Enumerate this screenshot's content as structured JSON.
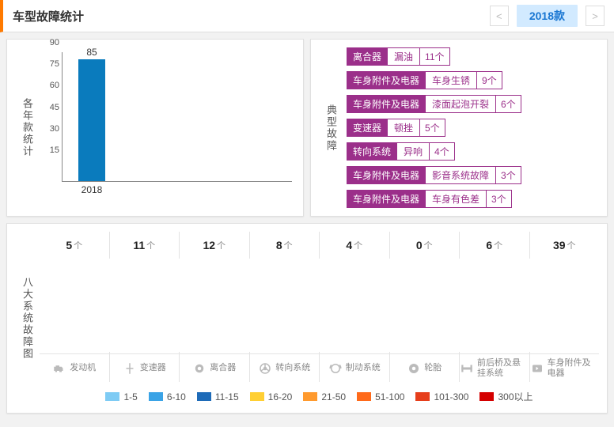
{
  "header": {
    "title": "车型故障统计",
    "prev": "<",
    "next": ">",
    "year_pill": "2018款"
  },
  "yearly": {
    "section_label": "各年款统计",
    "ylim": [
      0,
      90
    ],
    "ytick_step": 15,
    "bar_color": "#0a7bbd",
    "bars": [
      {
        "label": "2018",
        "value": 85
      }
    ]
  },
  "faults": {
    "section_label": "典型故障",
    "unit": "个",
    "cat_bg": "#9b2f8a",
    "items": [
      {
        "category": "离合器",
        "name": "漏油",
        "count": 11
      },
      {
        "category": "车身附件及电器",
        "name": "车身生锈",
        "count": 9
      },
      {
        "category": "车身附件及电器",
        "name": "漆面起泡开裂",
        "count": 6
      },
      {
        "category": "变速器",
        "name": "顿挫",
        "count": 5
      },
      {
        "category": "转向系统",
        "name": "异响",
        "count": 4
      },
      {
        "category": "车身附件及电器",
        "name": "影音系统故障",
        "count": 3
      },
      {
        "category": "车身附件及电器",
        "name": "车身有色差",
        "count": 3
      }
    ]
  },
  "systems": {
    "section_label": "八大系统故障图",
    "unit": "个",
    "bar_area_max": 40,
    "items": [
      {
        "name": "发动机",
        "count": 5,
        "icon": "engine"
      },
      {
        "name": "变速器",
        "count": 11,
        "icon": "gearbox"
      },
      {
        "name": "离合器",
        "count": 12,
        "icon": "clutch"
      },
      {
        "name": "转向系统",
        "count": 8,
        "icon": "steering"
      },
      {
        "name": "制动系统",
        "count": 4,
        "icon": "brake"
      },
      {
        "name": "轮胎",
        "count": 0,
        "icon": "tire"
      },
      {
        "name": "前后桥及悬挂系统",
        "count": 6,
        "icon": "axle"
      },
      {
        "name": "车身附件及电器",
        "count": 39,
        "icon": "body"
      }
    ]
  },
  "legend": {
    "buckets": [
      {
        "label": "1-5",
        "min": 1,
        "max": 5,
        "color": "#7ecbf4"
      },
      {
        "label": "6-10",
        "min": 6,
        "max": 10,
        "color": "#3aa3e6"
      },
      {
        "label": "11-15",
        "min": 11,
        "max": 15,
        "color": "#1e6bb8"
      },
      {
        "label": "16-20",
        "min": 16,
        "max": 20,
        "color": "#ffcf33"
      },
      {
        "label": "21-50",
        "min": 21,
        "max": 50,
        "color": "#ff9a2e"
      },
      {
        "label": "51-100",
        "min": 51,
        "max": 100,
        "color": "#ff6a1a"
      },
      {
        "label": "101-300",
        "min": 101,
        "max": 300,
        "color": "#e63e1b"
      },
      {
        "label": "300以上",
        "min": 301,
        "max": 999999,
        "color": "#d40000"
      }
    ]
  }
}
